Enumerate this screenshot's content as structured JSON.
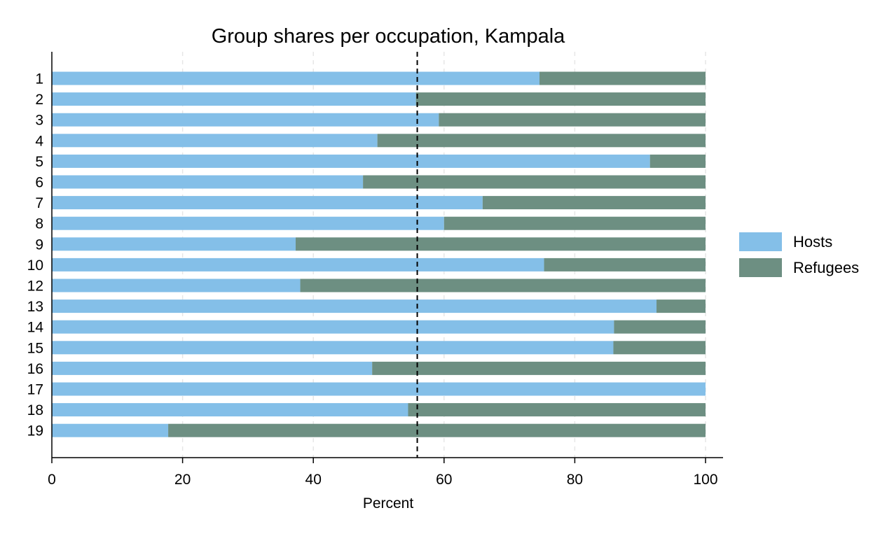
{
  "chart_data": {
    "type": "bar",
    "orientation": "horizontal",
    "stacked": true,
    "title": "Group shares per occupation, Kampala",
    "xlabel": "Percent",
    "ylabel": "",
    "xlim": [
      0,
      100
    ],
    "x_ticks": [
      0,
      20,
      40,
      60,
      80,
      100
    ],
    "x_tick_labels": [
      "0",
      "20",
      "40",
      "60",
      "80",
      "100"
    ],
    "categories": [
      "1",
      "2",
      "3",
      "4",
      "5",
      "6",
      "7",
      "8",
      "9",
      "10",
      "12",
      "13",
      "14",
      "15",
      "16",
      "17",
      "18",
      "19"
    ],
    "series": [
      {
        "name": "Hosts",
        "color": "#84bfe8",
        "values": [
          74.6,
          55.7,
          59.2,
          49.8,
          91.5,
          47.6,
          65.9,
          60.0,
          37.3,
          75.3,
          38.0,
          92.5,
          86.0,
          85.9,
          49.0,
          100.0,
          54.5,
          17.8
        ]
      },
      {
        "name": "Refugees",
        "color": "#6d8f82",
        "values": [
          25.4,
          44.3,
          40.8,
          50.2,
          8.5,
          52.4,
          34.1,
          40.0,
          62.7,
          24.7,
          62.0,
          7.5,
          14.0,
          14.1,
          51.0,
          0.0,
          45.5,
          82.2
        ]
      }
    ],
    "reference_line": {
      "x": 55.9,
      "style": "dashed"
    },
    "grid": {
      "vertical": true,
      "horizontal": false
    },
    "legend": {
      "position": "right"
    }
  }
}
